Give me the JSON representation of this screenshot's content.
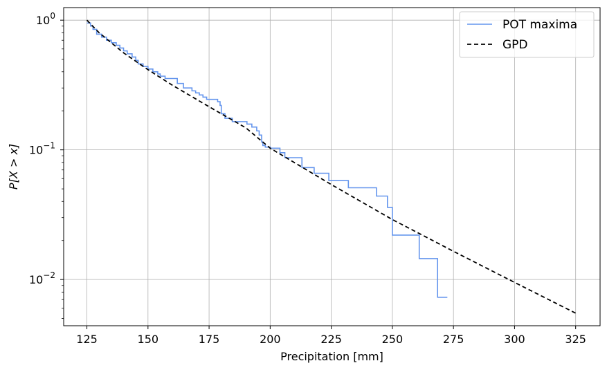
{
  "chart_data": {
    "type": "line",
    "title": "",
    "xlabel": "Precipitation [mm]",
    "ylabel_parts": [
      "P[X > x]"
    ],
    "x_ticks": [
      125,
      150,
      175,
      200,
      225,
      250,
      275,
      300,
      325
    ],
    "x_tick_labels": [
      "125",
      "150",
      "175",
      "200",
      "225",
      "250",
      "275",
      "300",
      "325"
    ],
    "y_scale": "log",
    "y_major_ticks": [
      {
        "value": 1,
        "base": "10",
        "exp": "0"
      },
      {
        "value": 0.1,
        "base": "10",
        "exp": "−1"
      },
      {
        "value": 0.01,
        "base": "10",
        "exp": "−2"
      }
    ],
    "xlim": [
      115.5,
      335
    ],
    "ylim": [
      0.0044,
      1.25
    ],
    "grid": true,
    "legend_position": "top-right",
    "series": [
      {
        "name": "POT maxima",
        "style": "step",
        "color": "#6495ED",
        "points": [
          [
            125,
            0.95
          ],
          [
            126.5,
            0.9
          ],
          [
            127.5,
            0.85
          ],
          [
            129,
            0.78
          ],
          [
            131,
            0.74
          ],
          [
            133,
            0.7
          ],
          [
            135,
            0.67
          ],
          [
            137,
            0.64
          ],
          [
            138.5,
            0.61
          ],
          [
            140,
            0.58
          ],
          [
            141.5,
            0.55
          ],
          [
            143.5,
            0.52
          ],
          [
            145,
            0.49
          ],
          [
            146,
            0.46
          ],
          [
            148,
            0.44
          ],
          [
            150,
            0.42
          ],
          [
            152,
            0.4
          ],
          [
            154,
            0.385
          ],
          [
            155,
            0.37
          ],
          [
            157,
            0.355
          ],
          [
            162,
            0.325
          ],
          [
            164.5,
            0.3
          ],
          [
            168,
            0.285
          ],
          [
            169.5,
            0.275
          ],
          [
            171,
            0.265
          ],
          [
            172.5,
            0.255
          ],
          [
            174,
            0.245
          ],
          [
            178.5,
            0.235
          ],
          [
            179.5,
            0.22
          ],
          [
            180,
            0.19
          ],
          [
            181.5,
            0.175
          ],
          [
            184.5,
            0.165
          ],
          [
            190.5,
            0.158
          ],
          [
            192.5,
            0.15
          ],
          [
            194.5,
            0.14
          ],
          [
            195.5,
            0.13
          ],
          [
            196.5,
            0.115
          ],
          [
            197,
            0.108
          ],
          [
            198,
            0.105
          ],
          [
            200,
            0.103
          ],
          [
            204,
            0.095
          ],
          [
            206,
            0.087
          ],
          [
            213,
            0.073
          ],
          [
            218,
            0.066
          ],
          [
            224,
            0.058
          ],
          [
            232,
            0.051
          ],
          [
            243.5,
            0.044
          ],
          [
            248,
            0.036
          ],
          [
            250,
            0.022
          ],
          [
            261,
            0.0145
          ],
          [
            268.5,
            0.0073
          ],
          [
            272.5,
            0.0073
          ]
        ]
      },
      {
        "name": "GPD",
        "style": "dashed",
        "color": "#000000",
        "points": [
          [
            125,
            1.0
          ],
          [
            130,
            0.8
          ],
          [
            140,
            0.56
          ],
          [
            150,
            0.415
          ],
          [
            160,
            0.315
          ],
          [
            175,
            0.215
          ],
          [
            190,
            0.148
          ],
          [
            200,
            0.103
          ],
          [
            225,
            0.054
          ],
          [
            250,
            0.029
          ],
          [
            275,
            0.0165
          ],
          [
            300,
            0.0095
          ],
          [
            325,
            0.0055
          ]
        ]
      }
    ],
    "colors": {
      "grid": "#b0b0b0",
      "axes": "#000000"
    }
  }
}
